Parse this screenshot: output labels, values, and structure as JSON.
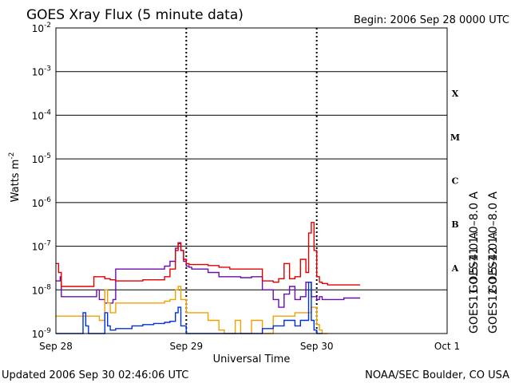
{
  "header": {
    "title": "GOES Xray Flux (5 minute data)",
    "begin": "Begin:  2006 Sep 28 0000 UTC"
  },
  "footer": {
    "updated": "Updated 2006 Sep 30 02:46:06 UTC",
    "credit": "NOAA/SEC Boulder, CO USA"
  },
  "chart_data": {
    "type": "line",
    "title": "GOES Xray Flux (5 minute data)",
    "xlabel": "Universal Time",
    "ylabel": "Watts m",
    "ylabel_exponent": "-2",
    "yscale": "log",
    "ylim": [
      1e-09,
      0.01
    ],
    "xlim": [
      "2006-09-28T00:00",
      "2006-10-01T00:00"
    ],
    "x_ticks": [
      "Sep 28",
      "Sep 29",
      "Sep 30",
      "Oct 1"
    ],
    "y_ticks": [
      {
        "mantissa": "10",
        "exp": "-9",
        "value": 1e-09
      },
      {
        "mantissa": "10",
        "exp": "-8",
        "value": 1e-08
      },
      {
        "mantissa": "10",
        "exp": "-7",
        "value": 1e-07
      },
      {
        "mantissa": "10",
        "exp": "-6",
        "value": 1e-06
      },
      {
        "mantissa": "10",
        "exp": "-5",
        "value": 1e-05
      },
      {
        "mantissa": "10",
        "exp": "-4",
        "value": 0.0001
      },
      {
        "mantissa": "10",
        "exp": "-3",
        "value": 0.001
      },
      {
        "mantissa": "10",
        "exp": "-2",
        "value": 0.01
      }
    ],
    "flare_classes": [
      "A",
      "B",
      "C",
      "M",
      "X"
    ],
    "grid": "horizontal lines at each decade, dashed vertical lines at day boundaries",
    "legend_placement": "right",
    "series": [
      {
        "name": "GOES11 1.0–8.0 A",
        "color": "#6a0dad",
        "x_hours": [
          0,
          0.8,
          1,
          2,
          4,
          6,
          7,
          7.5,
          8,
          9,
          10,
          10.5,
          11,
          12,
          14,
          16,
          18,
          20,
          21,
          22,
          22.5,
          23,
          23.5,
          24,
          24.5,
          25,
          26,
          28,
          30,
          32,
          34,
          36,
          38,
          40,
          41,
          42,
          43,
          44,
          45,
          46,
          47,
          48,
          48.5,
          49,
          50,
          51,
          52,
          53,
          54,
          55,
          56
        ],
        "values": [
          1.6e-08,
          2e-08,
          7e-09,
          7e-09,
          7e-09,
          7e-09,
          7e-09,
          1e-08,
          6e-09,
          5e-09,
          5e-09,
          6e-09,
          3e-08,
          3e-08,
          3e-08,
          3e-08,
          3e-08,
          3.5e-08,
          4.5e-08,
          9e-08,
          1.15e-07,
          8e-08,
          4.5e-08,
          3.5e-08,
          3.3e-08,
          3e-08,
          3e-08,
          2.5e-08,
          2e-08,
          2e-08,
          1.9e-08,
          2e-08,
          1e-08,
          6e-09,
          4e-09,
          8e-09,
          1.2e-08,
          6e-09,
          7e-09,
          1.5e-08,
          7e-09,
          6e-09,
          7e-09,
          6e-09,
          6e-09,
          6e-09,
          6e-09,
          6.5e-09,
          6.5e-09,
          6.5e-09,
          6.5e-09
        ]
      },
      {
        "name": "GOES12 1.0–8.0 A",
        "color": "#e00000",
        "x_hours": [
          0,
          0.5,
          1,
          2,
          4,
          6,
          7,
          8,
          9,
          10,
          11,
          12,
          14,
          16,
          18,
          20,
          21,
          22,
          22.5,
          23,
          23.5,
          24,
          24.5,
          26,
          28,
          30,
          32,
          34,
          36,
          38,
          40,
          41,
          42,
          43,
          44,
          45,
          46,
          46.5,
          47,
          47.5,
          48,
          48.5,
          49,
          50,
          52,
          54,
          56
        ],
        "values": [
          4e-08,
          2.5e-08,
          1.2e-08,
          1.2e-08,
          1.2e-08,
          1.2e-08,
          2e-08,
          2e-08,
          1.8e-08,
          1.7e-08,
          1.6e-08,
          1.6e-08,
          1.6e-08,
          1.7e-08,
          1.7e-08,
          2e-08,
          3e-08,
          8e-08,
          1.2e-07,
          8e-08,
          5e-08,
          4e-08,
          3.8e-08,
          3.8e-08,
          3.6e-08,
          3.3e-08,
          3e-08,
          3e-08,
          3e-08,
          1.6e-08,
          1.5e-08,
          1.8e-08,
          4e-08,
          1.8e-08,
          2e-08,
          5e-08,
          2.5e-08,
          2e-07,
          3.5e-07,
          8e-08,
          2e-08,
          1.5e-08,
          1.4e-08,
          1.3e-08,
          1.3e-08,
          1.3e-08,
          1.3e-08
        ]
      },
      {
        "name": "GOES11 0.5–4.0 A",
        "color": "#f0a000",
        "x_hours": [
          0,
          2,
          4,
          6,
          7,
          8,
          9,
          9.5,
          10,
          11,
          12,
          14,
          16,
          18,
          19,
          20,
          21,
          22,
          22.5,
          23,
          24,
          26,
          28,
          30,
          31,
          32,
          33,
          34,
          36,
          38,
          40,
          42,
          44,
          45,
          46,
          46.5,
          47,
          48,
          48.5,
          49,
          50
        ],
        "values": [
          2.5e-09,
          2.5e-09,
          2.5e-09,
          2.5e-09,
          2.5e-09,
          2e-09,
          1e-08,
          5e-09,
          3e-09,
          5e-09,
          5e-09,
          5e-09,
          5e-09,
          5e-09,
          5e-09,
          5.5e-09,
          6e-09,
          1e-08,
          1.2e-08,
          6e-09,
          3e-09,
          3e-09,
          2e-09,
          1.2e-09,
          1e-09,
          1e-09,
          2e-09,
          1e-09,
          2e-09,
          1e-09,
          2.5e-09,
          2.5e-09,
          3e-09,
          3e-09,
          3e-09,
          3e-09,
          4e-09,
          1.6e-09,
          1.2e-09,
          1e-09,
          1e-09
        ]
      },
      {
        "name": "GOES12 0.5–4.0 A",
        "color": "#0030e0",
        "x_hours": [
          0,
          2,
          4,
          5,
          5.5,
          6,
          7,
          8,
          9,
          9.5,
          10,
          11,
          12,
          14,
          16,
          18,
          20,
          21,
          22,
          22.5,
          23,
          24,
          30,
          36,
          38,
          40,
          42,
          44,
          45,
          46,
          46.5,
          47,
          47.5,
          48,
          48.5,
          49
        ],
        "values": [
          1e-09,
          1e-09,
          1e-09,
          3e-09,
          1.5e-09,
          1e-09,
          1e-09,
          1e-09,
          3e-09,
          1.5e-09,
          1.2e-09,
          1.3e-09,
          1.3e-09,
          1.5e-09,
          1.6e-09,
          1.7e-09,
          1.8e-09,
          1.9e-09,
          3e-09,
          4e-09,
          1.5e-09,
          1e-09,
          1e-09,
          1e-09,
          1.3e-09,
          1.5e-09,
          2e-09,
          1.5e-09,
          2e-09,
          2e-09,
          1.5e-08,
          2e-09,
          1.2e-09,
          1e-09,
          1e-09,
          1e-09
        ]
      }
    ]
  }
}
